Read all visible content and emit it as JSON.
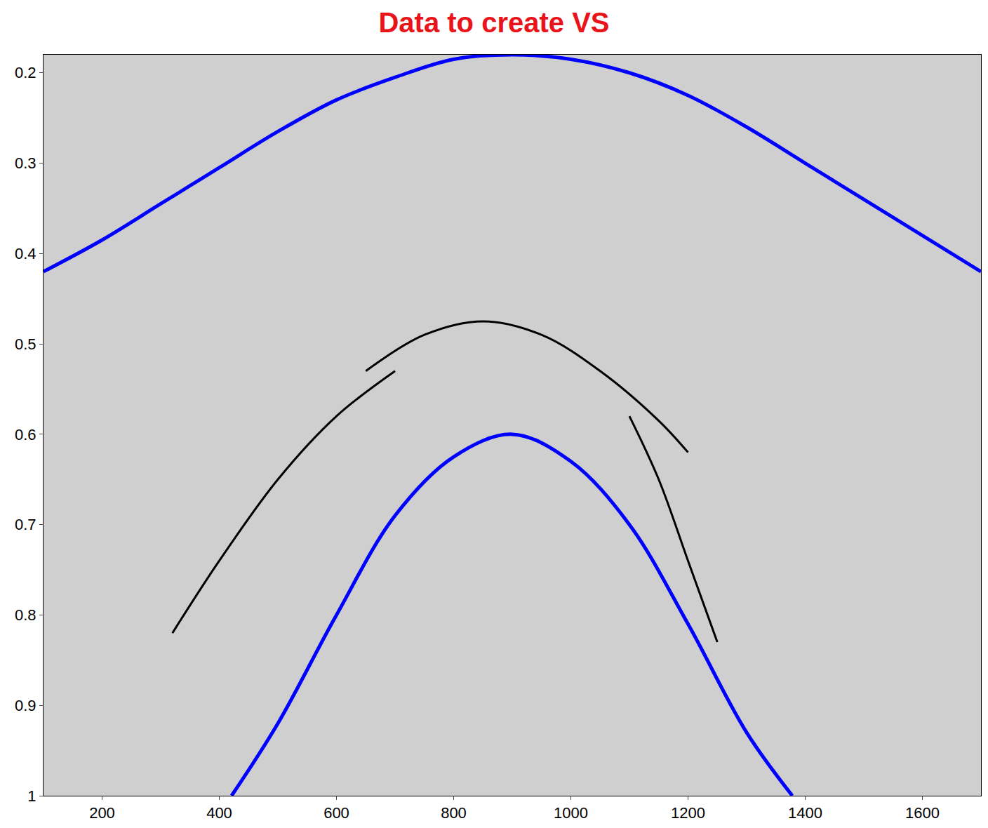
{
  "chart_data": {
    "type": "line",
    "title": "Data to create VS",
    "xlim": [
      100,
      1700
    ],
    "xticks": [
      200,
      400,
      600,
      800,
      1000,
      1200,
      1400,
      1600
    ],
    "ylim": [
      1,
      0.18
    ],
    "yticks": [
      0.2,
      0.3,
      0.4,
      0.5,
      0.6,
      0.7,
      0.8,
      0.9,
      1
    ],
    "grid": false,
    "series": [
      {
        "color": "#0000ff",
        "x": [
          100,
          200,
          300,
          400,
          500,
          600,
          700,
          800,
          900,
          1000,
          1100,
          1200,
          1300,
          1400,
          1500,
          1600,
          1700
        ],
        "values": [
          0.42,
          0.385,
          0.345,
          0.305,
          0.265,
          0.23,
          0.205,
          0.185,
          0.18,
          0.185,
          0.2,
          0.225,
          0.26,
          0.3,
          0.34,
          0.38,
          0.42
        ]
      },
      {
        "color": "#0000ff",
        "x": [
          421,
          500,
          600,
          700,
          800,
          900,
          1000,
          1100,
          1200,
          1300,
          1378
        ],
        "values": [
          1.0,
          0.92,
          0.8,
          0.69,
          0.625,
          0.6,
          0.63,
          0.7,
          0.81,
          0.93,
          1.0
        ]
      },
      {
        "color": "#000000",
        "x": [
          650,
          750,
          850,
          950,
          1050,
          1150,
          1200
        ],
        "values": [
          0.53,
          0.49,
          0.475,
          0.49,
          0.53,
          0.585,
          0.62
        ]
      },
      {
        "color": "#000000",
        "x": [
          1100,
          1150,
          1200,
          1250
        ],
        "values": [
          0.58,
          0.65,
          0.74,
          0.83
        ]
      },
      {
        "color": "#000000",
        "x": [
          700,
          600,
          500,
          400,
          320
        ],
        "values": [
          0.53,
          0.58,
          0.65,
          0.74,
          0.82
        ]
      }
    ]
  }
}
